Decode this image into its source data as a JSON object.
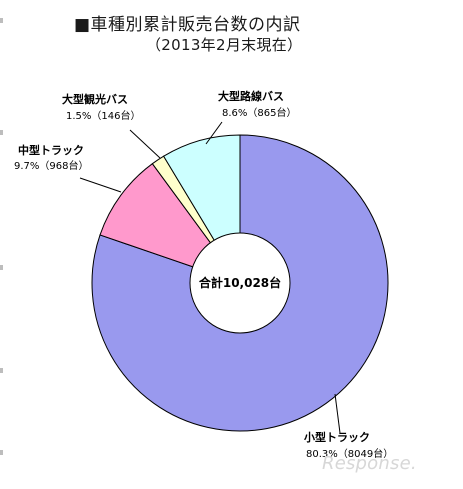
{
  "header": {
    "title": "■車種別累計販売台数の内訳",
    "subtitle": "（2013年2月末現在）"
  },
  "chart_data": {
    "type": "pie",
    "title": "■車種別累計販売台数の内訳",
    "subtitle": "（2013年2月末現在）",
    "center_label": "合計10,028台",
    "total": 10028,
    "slices": [
      {
        "name": "小型トラック",
        "value": 8049,
        "percent": 80.3,
        "label": "80.3%（8049台）",
        "color": "#9999ee"
      },
      {
        "name": "中型トラック",
        "value": 968,
        "percent": 9.7,
        "label": "9.7%（968台）",
        "color": "#ff99cc"
      },
      {
        "name": "大型観光バス",
        "value": 146,
        "percent": 1.5,
        "label": "1.5%（146台）",
        "color": "#ffffcc"
      },
      {
        "name": "大型路線バス",
        "value": 865,
        "percent": 8.6,
        "label": "8.6%（865台）",
        "color": "#ccffff"
      }
    ]
  },
  "watermark": "Response."
}
